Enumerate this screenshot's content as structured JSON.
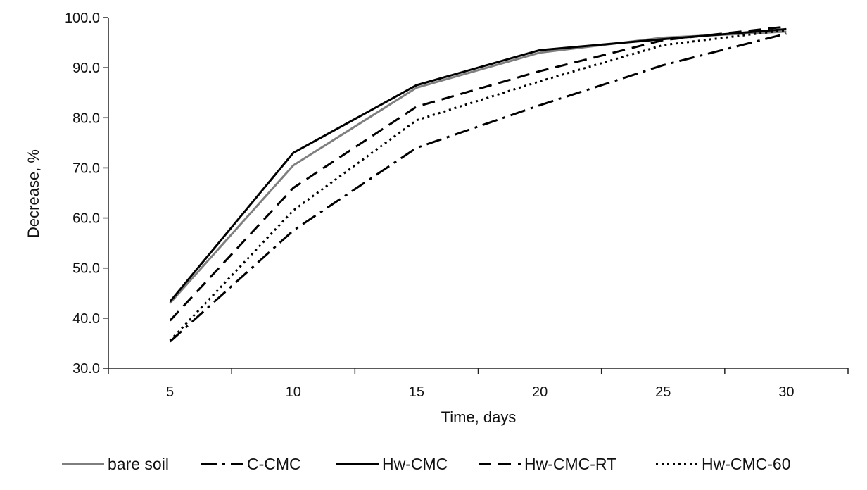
{
  "chart_data": {
    "type": "line",
    "title": "",
    "xlabel": "Time, days",
    "ylabel": "Decrease, %",
    "x": [
      5,
      10,
      15,
      20,
      25,
      30
    ],
    "x_tick_labels": [
      "5",
      "10",
      "15",
      "20",
      "25",
      "30"
    ],
    "ylim": [
      30.0,
      100.0
    ],
    "y_tick_labels": [
      "30.0",
      "40.0",
      "50.0",
      "60.0",
      "70.0",
      "80.0",
      "90.0",
      "100.0"
    ],
    "grid": false,
    "legend_position": "bottom",
    "series": [
      {
        "name": "bare soil",
        "values": [
          43.0,
          70.5,
          86.0,
          93.0,
          96.0,
          97.2
        ],
        "color": "#7f7f7f",
        "dash": "solid"
      },
      {
        "name": "C-CMC",
        "values": [
          35.3,
          57.5,
          74.0,
          82.5,
          90.5,
          96.8
        ],
        "color": "#000000",
        "dash": "dashdot"
      },
      {
        "name": "Hw-CMC",
        "values": [
          43.3,
          73.0,
          86.5,
          93.5,
          95.7,
          97.7
        ],
        "color": "#000000",
        "dash": "solid"
      },
      {
        "name": "Hw-CMC-RT",
        "values": [
          39.5,
          66.0,
          82.2,
          89.3,
          95.5,
          98.2
        ],
        "color": "#000000",
        "dash": "dash"
      },
      {
        "name": "Hw-CMC-60",
        "values": [
          35.5,
          61.5,
          79.5,
          87.3,
          94.5,
          97.5
        ],
        "color": "#000000",
        "dash": "dot"
      }
    ]
  }
}
